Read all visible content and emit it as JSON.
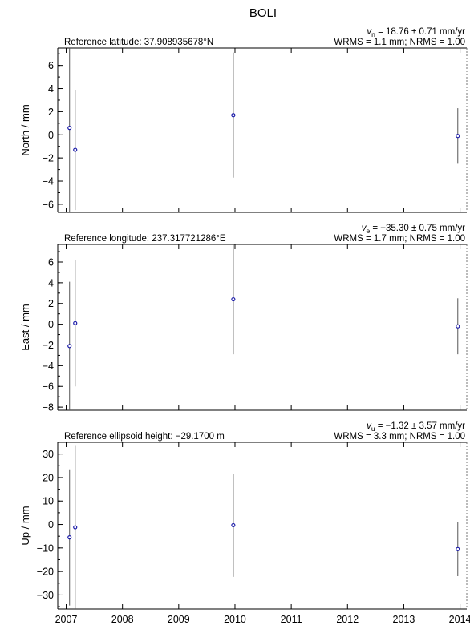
{
  "chart_data": {
    "type": "scatter",
    "title": "BOLI",
    "x": {
      "ticks": [
        2007,
        2008,
        2009,
        2010,
        2011,
        2012,
        2013,
        2014
      ],
      "range": [
        2006.85,
        2014.12
      ]
    },
    "panels": [
      {
        "id": "north",
        "ylabel": "North / mm",
        "ylim": [
          -6.7,
          7.5
        ],
        "yticks": [
          -6,
          -4,
          -2,
          0,
          2,
          4,
          6
        ],
        "reference_label": "Reference latitude: 37.908935678°N",
        "velocity_prefix": "v",
        "velocity_sub": "n",
        "velocity_text": " = 18.76 ± 0.71 mm/yr",
        "rms_text": "WRMS = 1.1 mm; NRMS = 1.00",
        "points": [
          {
            "x": 2007.06,
            "y": 0.6,
            "err": 7.4
          },
          {
            "x": 2007.16,
            "y": -1.3,
            "err": 5.2
          },
          {
            "x": 2009.97,
            "y": 1.7,
            "err": 5.4
          },
          {
            "x": 2013.96,
            "y": -0.1,
            "err": 2.4
          }
        ]
      },
      {
        "id": "east",
        "ylabel": "East / mm",
        "ylim": [
          -8.3,
          7.7
        ],
        "yticks": [
          -8,
          -6,
          -4,
          -2,
          0,
          2,
          4,
          6
        ],
        "reference_label": "Reference longitude: 237.317721286°E",
        "velocity_prefix": "v",
        "velocity_sub": "e",
        "velocity_text": " = −35.30 ± 0.75 mm/yr",
        "rms_text": "WRMS = 1.7 mm; NRMS = 1.00",
        "points": [
          {
            "x": 2007.06,
            "y": -2.1,
            "err": 6.2
          },
          {
            "x": 2007.16,
            "y": 0.1,
            "err": 6.1
          },
          {
            "x": 2009.97,
            "y": 2.4,
            "err": 5.3
          },
          {
            "x": 2013.96,
            "y": -0.2,
            "err": 2.7
          }
        ]
      },
      {
        "id": "up",
        "ylabel": "Up / mm",
        "ylim": [
          -36,
          35
        ],
        "yticks": [
          -30,
          -20,
          -10,
          0,
          10,
          20,
          30
        ],
        "reference_label": "Reference ellipsoid height: −29.1700 m",
        "velocity_prefix": "v",
        "velocity_sub": "u",
        "velocity_text": " = −1.32 ± 3.57 mm/yr",
        "rms_text": "WRMS = 3.3 mm; NRMS = 1.00",
        "points": [
          {
            "x": 2007.06,
            "y": -5.5,
            "err": 29
          },
          {
            "x": 2007.16,
            "y": -1.2,
            "err": 35
          },
          {
            "x": 2009.97,
            "y": -0.3,
            "err": 22
          },
          {
            "x": 2013.96,
            "y": -10.5,
            "err": 11.5
          }
        ]
      }
    ]
  }
}
